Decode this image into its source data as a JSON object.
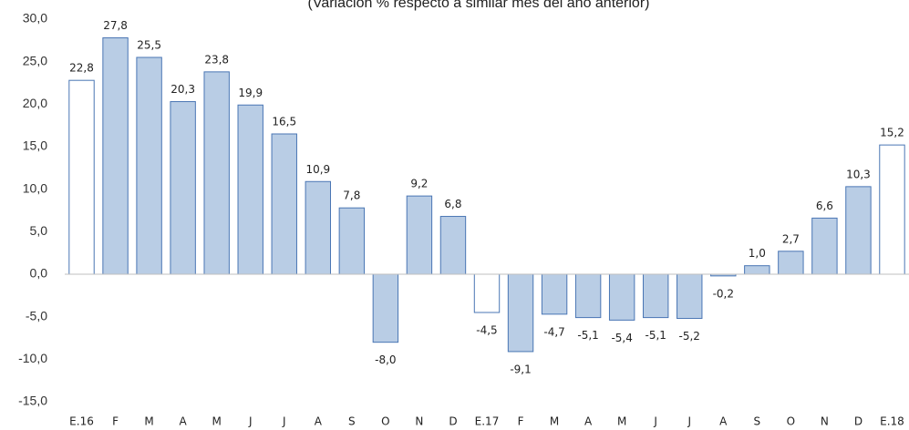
{
  "chart_data": {
    "type": "bar",
    "subtitle": "(Variación % respecto a similar mes del año anterior)",
    "categories": [
      "E.16",
      "F",
      "M",
      "A",
      "M",
      "J",
      "J",
      "A",
      "S",
      "O",
      "N",
      "D",
      "E.17",
      "F",
      "M",
      "A",
      "M",
      "J",
      "J",
      "A",
      "S",
      "O",
      "N",
      "D",
      "E.18"
    ],
    "values": [
      22.8,
      27.8,
      25.5,
      20.3,
      23.8,
      19.9,
      16.5,
      10.9,
      7.8,
      -8.0,
      9.2,
      6.8,
      -4.5,
      -9.1,
      -4.7,
      -5.1,
      -5.4,
      -5.1,
      -5.2,
      -0.2,
      1.0,
      2.7,
      6.6,
      10.3,
      15.2
    ],
    "value_labels": [
      "22,8",
      "27,8",
      "25,5",
      "20,3",
      "23,8",
      "19,9",
      "16,5",
      "10,9",
      "7,8",
      "-8,0",
      "9,2",
      "6,8",
      "-4,5",
      "-9,1",
      "-4,7",
      "-5,1",
      "-5,4",
      "-5,1",
      "-5,2",
      "-0,2",
      "1,0",
      "2,7",
      "6,6",
      "10,3",
      "15,2"
    ],
    "colors": [
      "#ffffff",
      "#b9cde5",
      "#b9cde5",
      "#b9cde5",
      "#b9cde5",
      "#b9cde5",
      "#b9cde5",
      "#b9cde5",
      "#b9cde5",
      "#b9cde5",
      "#b9cde5",
      "#b9cde5",
      "#ffffff",
      "#b9cde5",
      "#b9cde5",
      "#b9cde5",
      "#b9cde5",
      "#b9cde5",
      "#b9cde5",
      "#b9cde5",
      "#b9cde5",
      "#b9cde5",
      "#b9cde5",
      "#b9cde5",
      "#ffffff"
    ],
    "edge_color": "#4a76b4",
    "ylim": [
      -15,
      30
    ],
    "yticks": [
      {
        "value": -15,
        "label": "-15,0"
      },
      {
        "value": -10,
        "label": "-10,0"
      },
      {
        "value": -5,
        "label": "-5,0"
      },
      {
        "value": 0,
        "label": "0,0"
      },
      {
        "value": 5,
        "label": "5,0"
      },
      {
        "value": 10,
        "label": "10,0"
      },
      {
        "value": 15,
        "label": "15,0"
      },
      {
        "value": 20,
        "label": "20,0"
      },
      {
        "value": 25,
        "label": "25,0"
      },
      {
        "value": 30,
        "label": "30,0"
      }
    ],
    "grid": false
  }
}
